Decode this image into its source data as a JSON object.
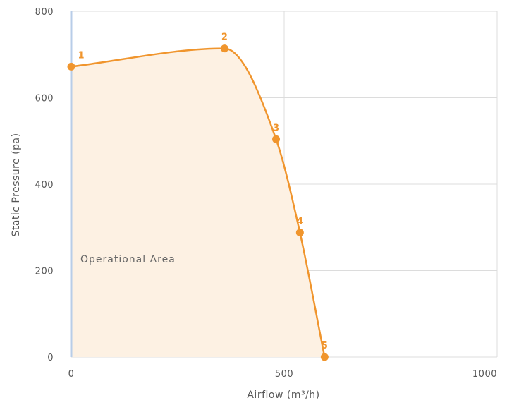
{
  "chart_data": {
    "type": "line",
    "xlabel": "Airflow (m³/h)",
    "ylabel": "Static Pressure (pa)",
    "xlim": [
      0,
      1000
    ],
    "ylim": [
      0,
      800
    ],
    "x_ticks": [
      "0",
      "500",
      "1000"
    ],
    "y_ticks": [
      "0",
      "200",
      "400",
      "600",
      "800"
    ],
    "grid": true,
    "area_label": "Operational Area",
    "series": [
      {
        "points": [
          {
            "label": "1",
            "x": 0,
            "y": 672
          },
          {
            "label": "2",
            "x": 360,
            "y": 714
          },
          {
            "label": "3",
            "x": 481,
            "y": 504
          },
          {
            "label": "4",
            "x": 537,
            "y": 288
          },
          {
            "label": "5",
            "x": 595,
            "y": 0
          }
        ]
      }
    ]
  },
  "colors": {
    "line": "#f0952d",
    "fill": "#fdf1e3",
    "grid": "#dcdcdc",
    "y_axis": "#b8cde8"
  }
}
